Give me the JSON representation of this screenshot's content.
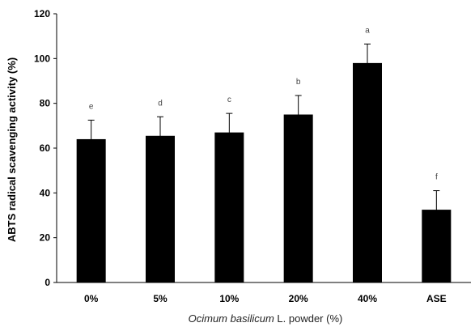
{
  "chart_data": {
    "type": "bar",
    "categories": [
      "0%",
      "5%",
      "10%",
      "20%",
      "40%",
      "ASE"
    ],
    "values": [
      64,
      65.5,
      67,
      75,
      98,
      32.5
    ],
    "errors": [
      8.5,
      8.5,
      8.5,
      8.5,
      8.5,
      8.5
    ],
    "letters": [
      "e",
      "d",
      "c",
      "b",
      "a",
      "f"
    ],
    "ylabel": "ABTS radical scavenging activity (%)",
    "xlabel_italic": "Ocimum basilicum",
    "xlabel_rest": " L. powder (%)",
    "ylim": [
      0,
      120
    ],
    "yticks": [
      0,
      20,
      40,
      60,
      80,
      100,
      120
    ],
    "grid": false,
    "bar_color": "#000000"
  }
}
